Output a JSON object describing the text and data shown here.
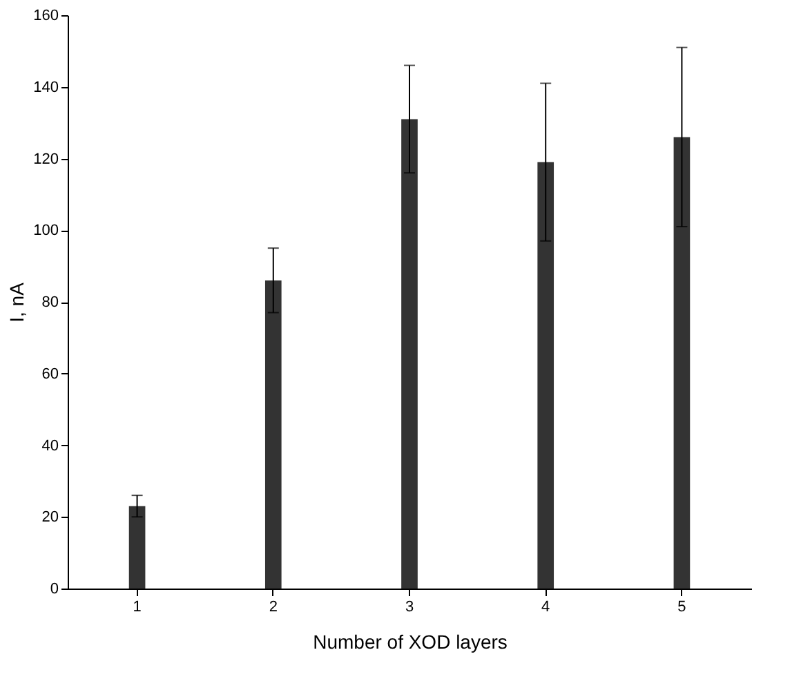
{
  "chart_data": {
    "type": "bar",
    "xlabel": "Number of XOD layers",
    "ylabel": "I, nA",
    "categories": [
      "1",
      "2",
      "3",
      "4",
      "5"
    ],
    "values": [
      23,
      86,
      131,
      119,
      126
    ],
    "errors": [
      3,
      9,
      15,
      22,
      25
    ],
    "color": "#333333",
    "ylim": [
      0,
      160
    ],
    "yticks": [
      0,
      20,
      40,
      60,
      80,
      100,
      120,
      140,
      160
    ],
    "grid": false
  }
}
